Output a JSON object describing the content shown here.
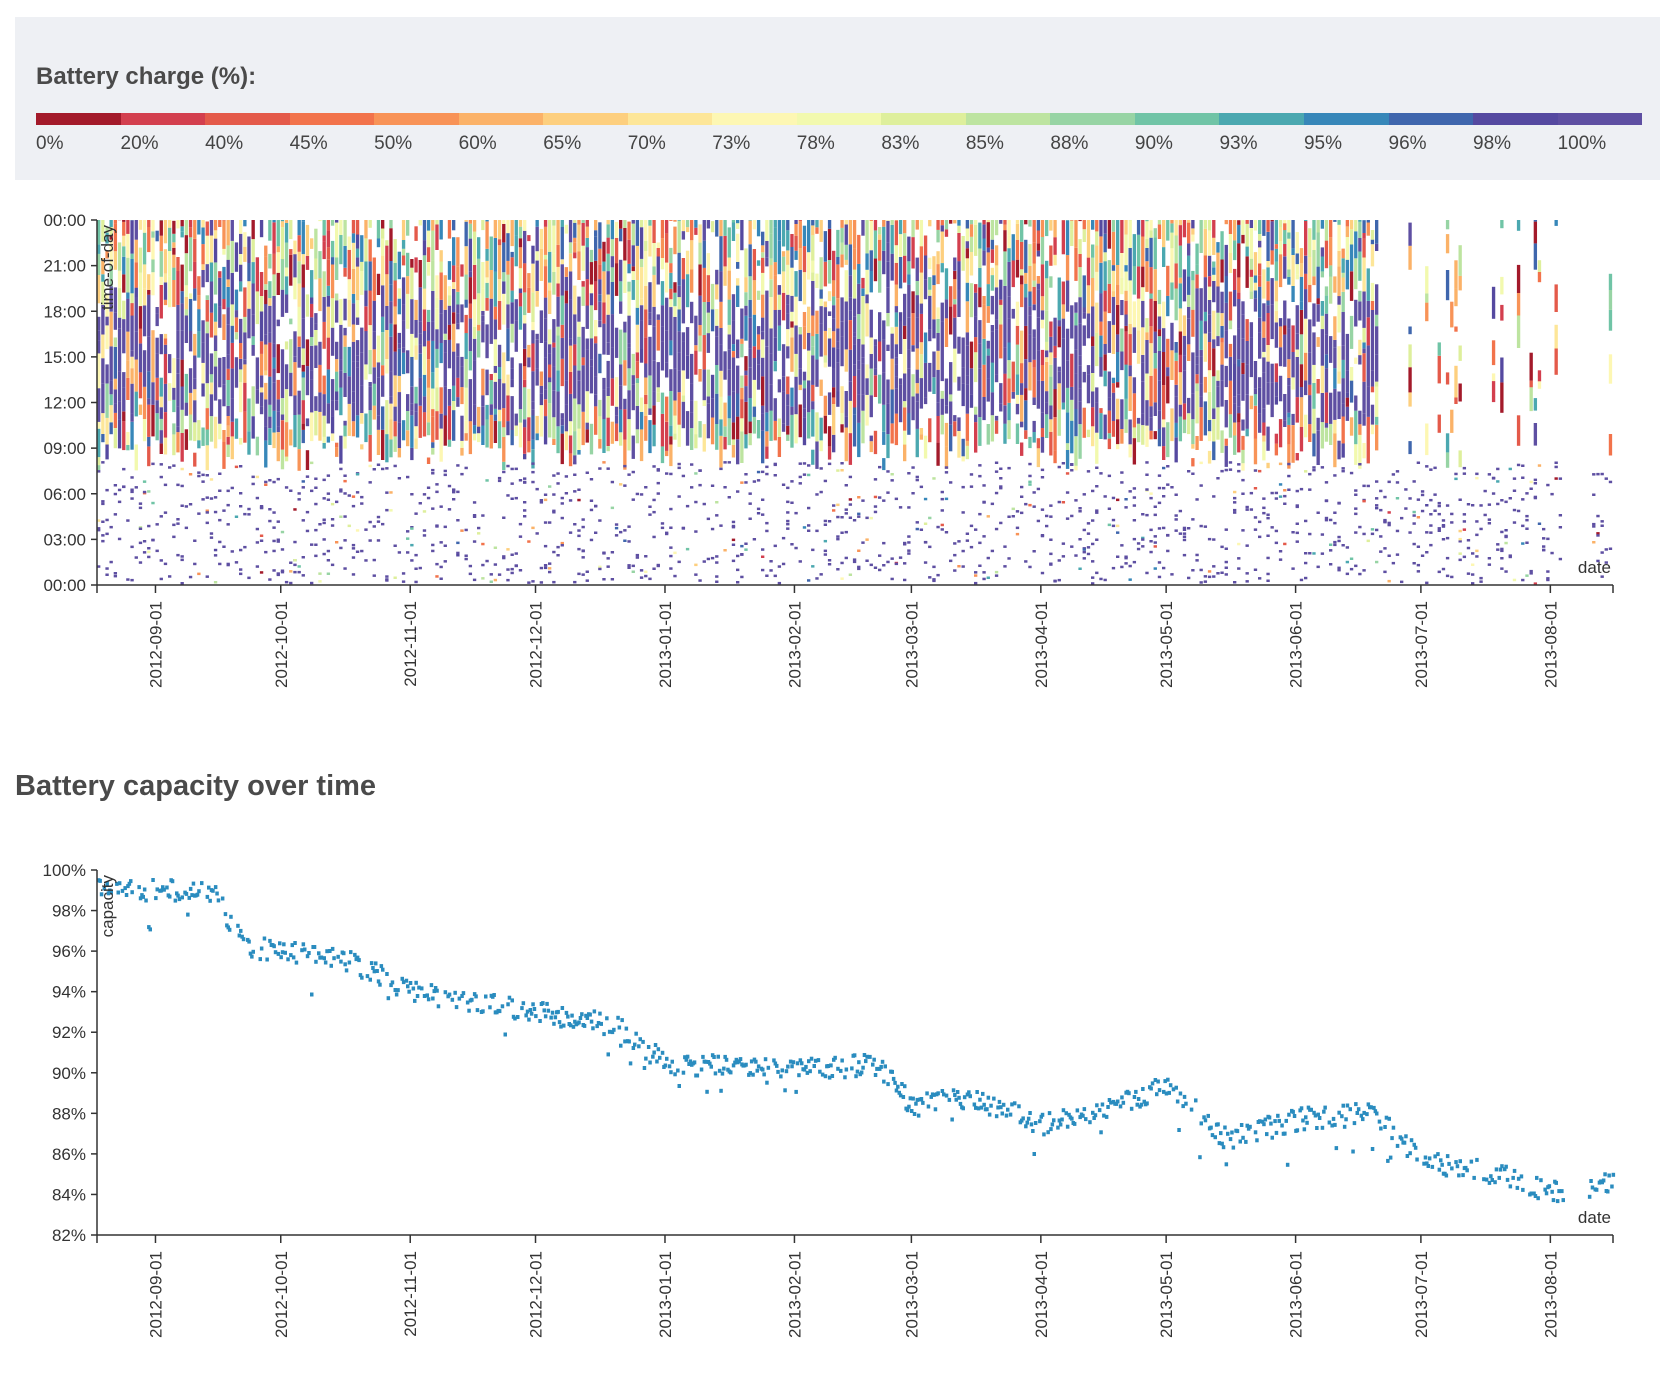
{
  "legend": {
    "title": "Battery charge (%):",
    "items": [
      {
        "label": "0%",
        "color": "#a31a2a"
      },
      {
        "label": "20%",
        "color": "#d33f4e"
      },
      {
        "label": "40%",
        "color": "#e45a4a"
      },
      {
        "label": "45%",
        "color": "#f2734b"
      },
      {
        "label": "50%",
        "color": "#f89357"
      },
      {
        "label": "60%",
        "color": "#fbb268"
      },
      {
        "label": "65%",
        "color": "#fdcf7e"
      },
      {
        "label": "70%",
        "color": "#fde698"
      },
      {
        "label": "73%",
        "color": "#fdf7b3"
      },
      {
        "label": "78%",
        "color": "#f2f9ae"
      },
      {
        "label": "83%",
        "color": "#deef9c"
      },
      {
        "label": "85%",
        "color": "#bde4a0"
      },
      {
        "label": "88%",
        "color": "#97d4a4"
      },
      {
        "label": "90%",
        "color": "#70c4a6"
      },
      {
        "label": "93%",
        "color": "#4ba8b0"
      },
      {
        "label": "95%",
        "color": "#3787b9"
      },
      {
        "label": "96%",
        "color": "#3f66ad"
      },
      {
        "label": "98%",
        "color": "#5549a0"
      },
      {
        "label": "100%",
        "color": "#5e4fa2"
      }
    ]
  },
  "chart_data": [
    {
      "type": "heatmap",
      "title": "",
      "xlabel": "date",
      "ylabel": "time-of-day",
      "x_range": [
        "2012-08-18",
        "2013-08-16"
      ],
      "y_range_hours": [
        0,
        24
      ],
      "x_ticks": [
        "2012-09-01",
        "2012-10-01",
        "2012-11-01",
        "2012-12-01",
        "2013-01-01",
        "2013-02-01",
        "2013-03-01",
        "2013-04-01",
        "2013-05-01",
        "2013-06-01",
        "2013-07-01",
        "2013-08-01"
      ],
      "y_ticks": [
        "00:00",
        "03:00",
        "06:00",
        "09:00",
        "12:00",
        "15:00",
        "18:00",
        "21:00",
        "00:00"
      ],
      "value_units": "battery charge (%)",
      "grid": false
    },
    {
      "type": "scatter",
      "title": "Battery capacity over time",
      "xlabel": "date",
      "ylabel": "capacity",
      "color": "#2a8cbf",
      "x_range": [
        "2012-08-18",
        "2013-08-16"
      ],
      "ylim": [
        82,
        100
      ],
      "x_ticks": [
        "2012-09-01",
        "2012-10-01",
        "2012-11-01",
        "2012-12-01",
        "2013-01-01",
        "2013-02-01",
        "2013-03-01",
        "2013-04-01",
        "2013-05-01",
        "2013-06-01",
        "2013-07-01",
        "2013-08-01"
      ],
      "y_ticks": [
        "100%",
        "98%",
        "96%",
        "94%",
        "92%",
        "90%",
        "88%",
        "86%",
        "84%",
        "82%"
      ],
      "trend_points": [
        {
          "date": "2012-08-18",
          "y": 99.2
        },
        {
          "date": "2012-09-15",
          "y": 98.8
        },
        {
          "date": "2012-09-22",
          "y": 96.2
        },
        {
          "date": "2012-10-15",
          "y": 95.7
        },
        {
          "date": "2012-11-01",
          "y": 94.0
        },
        {
          "date": "2012-12-01",
          "y": 93.0
        },
        {
          "date": "2012-12-20",
          "y": 92.3
        },
        {
          "date": "2013-01-01",
          "y": 90.4
        },
        {
          "date": "2013-02-01",
          "y": 90.2
        },
        {
          "date": "2013-02-20",
          "y": 90.4
        },
        {
          "date": "2013-03-01",
          "y": 88.4
        },
        {
          "date": "2013-03-15",
          "y": 88.8
        },
        {
          "date": "2013-04-01",
          "y": 87.4
        },
        {
          "date": "2013-04-20",
          "y": 88.4
        },
        {
          "date": "2013-05-01",
          "y": 89.5
        },
        {
          "date": "2013-05-15",
          "y": 86.7
        },
        {
          "date": "2013-06-01",
          "y": 87.7
        },
        {
          "date": "2013-06-20",
          "y": 88.0
        },
        {
          "date": "2013-07-01",
          "y": 85.6
        },
        {
          "date": "2013-07-20",
          "y": 85.0
        },
        {
          "date": "2013-08-01",
          "y": 84.1
        },
        {
          "date": "2013-08-16",
          "y": 84.6
        }
      ]
    }
  ]
}
